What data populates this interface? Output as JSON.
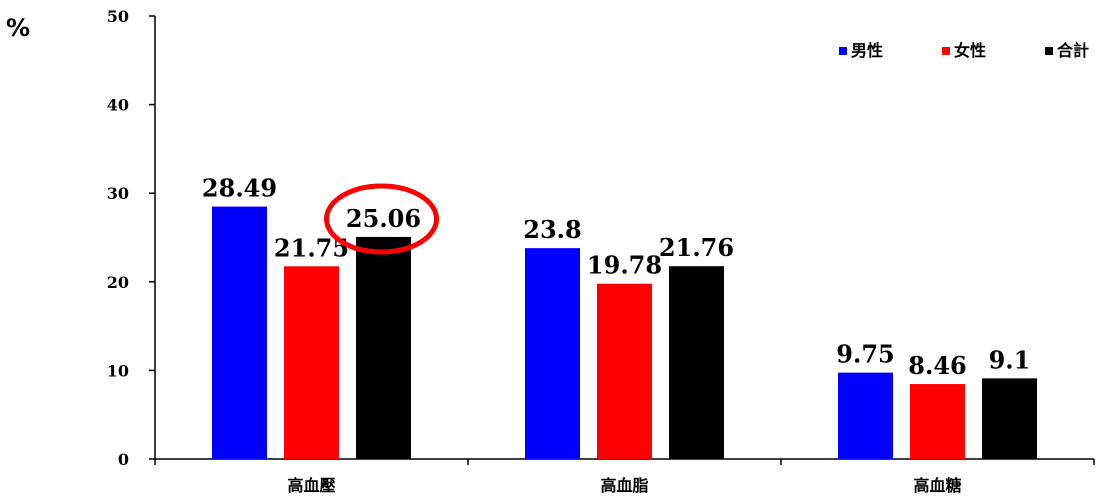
{
  "chart_data": {
    "type": "bar",
    "unit": "%",
    "categories": [
      "高血壓",
      "高血脂",
      "高血糖"
    ],
    "series": [
      {
        "name": "男性",
        "color": "#0000ff",
        "values": [
          28.49,
          23.8,
          9.75
        ],
        "labels": [
          "28.49",
          "23.8",
          "9.75"
        ]
      },
      {
        "name": "女性",
        "color": "#ff0000",
        "values": [
          21.75,
          19.78,
          8.46
        ],
        "labels": [
          "21.75",
          "19.78",
          "8.46"
        ]
      },
      {
        "name": "合計",
        "color": "#000000",
        "values": [
          25.06,
          21.76,
          9.1
        ],
        "labels": [
          "25.06",
          "21.76",
          "9.1"
        ]
      }
    ],
    "ylim": [
      0,
      50
    ],
    "yticks": [
      0,
      10,
      20,
      30,
      40,
      50
    ],
    "grid": false,
    "legend_position": "top-right",
    "annotation": {
      "type": "circle",
      "color": "#ff0000",
      "target": "合計 高血壓 25.06"
    }
  }
}
